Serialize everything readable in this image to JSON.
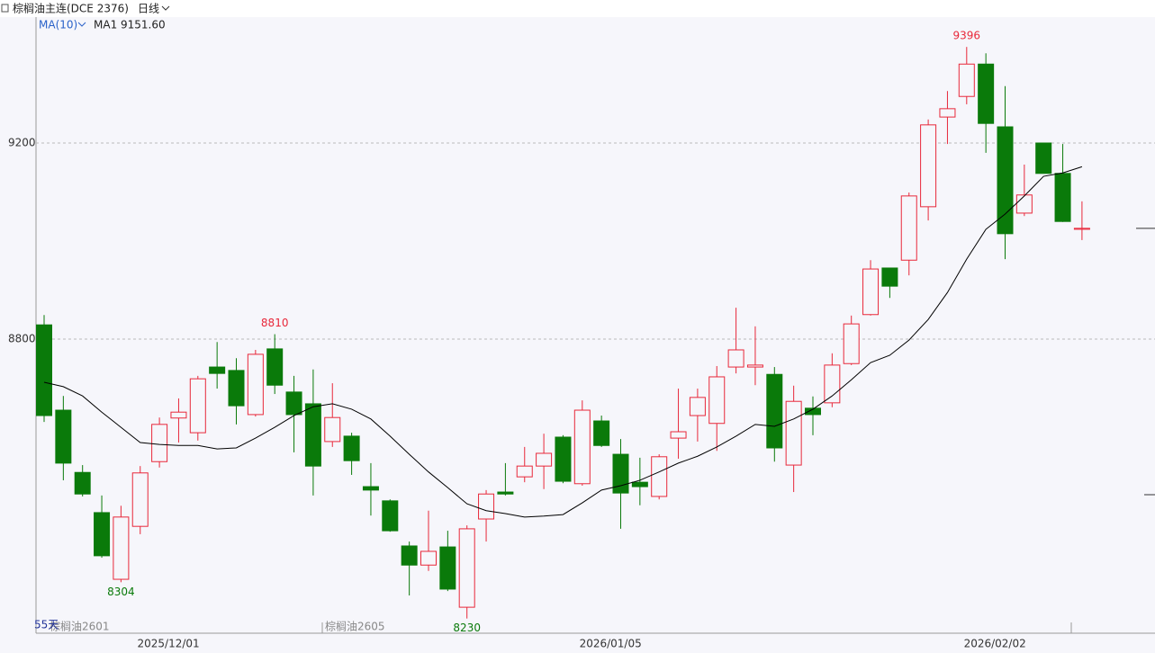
{
  "chart_data": {
    "type": "candlestick",
    "title": "棕榈油主连(DCE 2376)",
    "period": "日线",
    "indicator": "MA(10)",
    "ma_label": "MA1 9151.60",
    "day_count": "55天",
    "contracts": [
      "棕榈油2601",
      "棕榈油2605"
    ],
    "categories": [
      null,
      null,
      null,
      null,
      null,
      null,
      "2025/12/01",
      null,
      null,
      null,
      null,
      null,
      null,
      null,
      null,
      null,
      null,
      null,
      null,
      null,
      null,
      null,
      null,
      null,
      null,
      null,
      null,
      null,
      null,
      "2026/01/05",
      null,
      null,
      null,
      null,
      null,
      null,
      null,
      null,
      null,
      null,
      null,
      null,
      null,
      null,
      null,
      null,
      null,
      null,
      null,
      "2026/02/02",
      null,
      null,
      null,
      null,
      null
    ],
    "open": [
      8829,
      8655,
      8528,
      8446,
      8310,
      8418,
      8550,
      8639,
      8609,
      8743,
      8736,
      8646,
      8780,
      8692,
      8668,
      8591,
      8602,
      8499,
      8470,
      8378,
      8339,
      8376,
      8253,
      8433,
      8488,
      8519,
      8541,
      8600,
      8505,
      8633,
      8565,
      8508,
      8479,
      8598,
      8644,
      8628,
      8743,
      8743,
      8728,
      8543,
      8659,
      8670,
      8750,
      8850,
      8945,
      8961,
      9070,
      9253,
      9295,
      9361,
      9233,
      9057,
      9200,
      9138,
      9024
    ],
    "high": [
      8849,
      8684,
      8543,
      8481,
      8460,
      8541,
      8640,
      8679,
      8725,
      8794,
      8761,
      8778,
      8810,
      8725,
      8738,
      8710,
      8609,
      8547,
      8473,
      8387,
      8450,
      8409,
      8420,
      8492,
      8547,
      8580,
      8607,
      8604,
      8675,
      8644,
      8596,
      8558,
      8565,
      8699,
      8699,
      8745,
      8864,
      8826,
      8743,
      8705,
      8683,
      8771,
      8848,
      8961,
      8945,
      9099,
      9248,
      9306,
      9396,
      9383,
      9316,
      9156,
      9200,
      9198,
      9081
    ],
    "low": [
      8631,
      8512,
      8479,
      8354,
      8304,
      8402,
      8538,
      8589,
      8593,
      8699,
      8626,
      8642,
      8688,
      8569,
      8481,
      8580,
      8523,
      8440,
      8407,
      8277,
      8327,
      8286,
      8230,
      8387,
      8481,
      8508,
      8494,
      8506,
      8501,
      8580,
      8413,
      8461,
      8473,
      8556,
      8591,
      8572,
      8730,
      8706,
      8550,
      8488,
      8604,
      8661,
      8747,
      8848,
      8884,
      8930,
      9042,
      9198,
      9279,
      9180,
      8963,
      9051,
      9138,
      9039,
      9002
    ],
    "close": [
      8644,
      8547,
      8484,
      8358,
      8437,
      8527,
      8626,
      8651,
      8719,
      8730,
      8664,
      8769,
      8706,
      8646,
      8541,
      8640,
      8552,
      8492,
      8409,
      8339,
      8367,
      8290,
      8413,
      8484,
      8484,
      8541,
      8567,
      8510,
      8655,
      8583,
      8486,
      8499,
      8560,
      8611,
      8681,
      8723,
      8778,
      8747,
      8578,
      8673,
      8646,
      8747,
      8831,
      8943,
      8908,
      9092,
      9237,
      9270,
      9361,
      9240,
      9015,
      9094,
      9138,
      9040,
      9026
    ],
    "ma_values": [
      8712,
      8703,
      8684,
      8651,
      8620,
      8589,
      8585,
      8583,
      8583,
      8576,
      8578,
      8598,
      8620,
      8644,
      8662,
      8668,
      8657,
      8637,
      8602,
      8565,
      8529,
      8497,
      8464,
      8450,
      8444,
      8437,
      8439,
      8442,
      8466,
      8492,
      8501,
      8512,
      8529,
      8547,
      8561,
      8580,
      8602,
      8626,
      8622,
      8637,
      8657,
      8684,
      8717,
      8752,
      8767,
      8798,
      8840,
      8895,
      8963,
      9024,
      9055,
      9092,
      9132,
      9139,
      9151.6
    ],
    "annotations": [
      "8304",
      "8810",
      "8230",
      "9396"
    ],
    "up_color": "#e8283a",
    "down_color": "#0a7a0a",
    "ma_color": "#000000",
    "ylim": [
      8200,
      9460
    ],
    "yticks": [
      8800,
      9200
    ],
    "grid": true
  }
}
